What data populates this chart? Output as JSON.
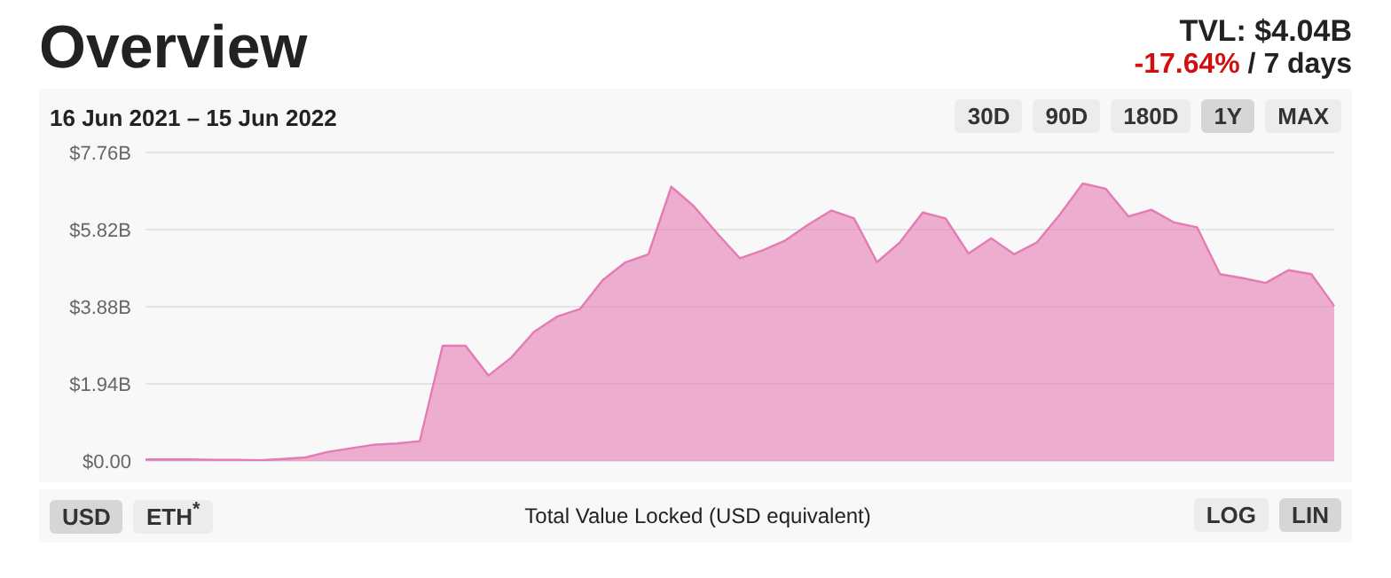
{
  "chart_data": {
    "type": "area",
    "title": "Overview",
    "subtitle": "16 Jun 2021 – 15 Jun 2022",
    "xlabel": "Total Value Locked (USD equivalent)",
    "annotations": [
      "TVL: $4.04B",
      "-17.64%",
      "/ 7 days",
      "30D",
      "90D",
      "180D",
      "1Y",
      "MAX",
      "USD",
      "ETH$^{*}$",
      "LOG",
      "LIN"
    ],
    "categories": [
      null,
      null,
      null,
      null,
      null,
      null,
      null,
      null,
      null,
      null,
      null,
      null,
      null,
      null,
      null,
      null,
      null,
      null,
      null,
      null,
      null,
      null,
      null,
      null,
      null,
      null,
      null,
      null,
      null,
      null,
      null,
      null,
      null,
      null,
      null,
      null,
      null,
      null,
      null,
      null,
      null,
      null,
      null,
      null,
      null,
      null,
      null,
      null,
      null,
      null,
      null,
      null,
      null
    ],
    "series": [
      {
        "color": "#e57bb4",
        "values": [
          0.04,
          0.04,
          0.04,
          0.03,
          0.03,
          0.02,
          0.05,
          0.09,
          0.23,
          0.32,
          0.41,
          0.44,
          0.5,
          2.9,
          2.9,
          2.15,
          2.6,
          3.25,
          3.63,
          3.82,
          4.55,
          5.0,
          5.2,
          6.9,
          6.4,
          5.73,
          5.1,
          5.3,
          5.55,
          5.95,
          6.3,
          6.1,
          5.0,
          5.5,
          6.25,
          6.1,
          5.22,
          5.6,
          5.2,
          5.5,
          6.2,
          6.98,
          6.85,
          6.15,
          6.32,
          6.0,
          5.88,
          4.7,
          4.6,
          4.48,
          4.8,
          4.7,
          3.9
        ]
      }
    ],
    "ylim": [
      0,
      7.76
    ],
    "yticks": [
      {
        "value": 0,
        "label": "$0.00"
      },
      {
        "value": 1.94,
        "label": "$1.94B"
      },
      {
        "value": 3.88,
        "label": "$3.88B"
      },
      {
        "value": 5.82,
        "label": "$5.82B"
      },
      {
        "value": 7.76,
        "label": "$7.76B"
      }
    ],
    "tick_labels": "y",
    "grid": "y",
    "legend": false
  }
}
